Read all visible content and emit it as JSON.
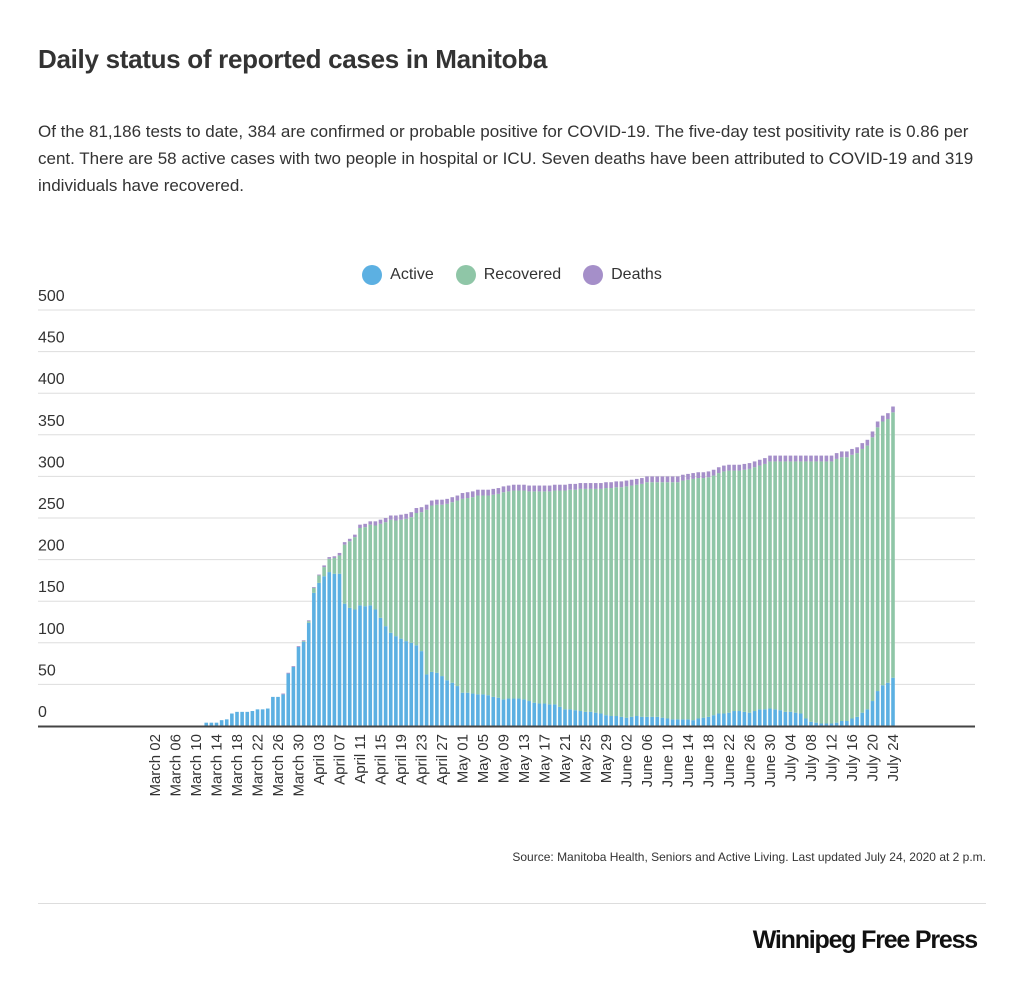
{
  "title": "Daily status of reported cases in Manitoba",
  "description": "Of the 81,186 tests to date, 384 are confirmed or probable positive for COVID-19. The five-day test positivity rate is 0.86 per cent. There are 58 active cases with two people in hospital or ICU. Seven deaths have been attributed to COVID-19 and 319 individuals have recovered.",
  "source": "Source: Manitoba Health, Seniors and Active Living.  Last updated July 24, 2020 at 2 p.m.",
  "logo": "Winnipeg Free Press",
  "colors": {
    "active": "#5cb0e2",
    "recovered": "#8fc6a7",
    "deaths": "#a58fc9"
  },
  "chart_data": {
    "type": "bar",
    "stacked": true,
    "title": "Daily status of reported cases in Manitoba",
    "legend_position": "top",
    "grid": true,
    "ylim": [
      0,
      500
    ],
    "yticks": [
      0,
      50,
      100,
      150,
      200,
      250,
      300,
      350,
      400,
      450,
      500
    ],
    "xtick_labels": [
      "March 02",
      "March 06",
      "March 10",
      "March 14",
      "March 18",
      "March 22",
      "March 26",
      "March 30",
      "April 03",
      "April 07",
      "April 11",
      "April 15",
      "April 19",
      "April 23",
      "April 27",
      "May 01",
      "May 05",
      "May 09",
      "May 13",
      "May 17",
      "May 21",
      "May 25",
      "May 29",
      "June 02",
      "June 06",
      "June 10",
      "June 14",
      "June 18",
      "June 22",
      "June 26",
      "June 30",
      "July 04",
      "July 08",
      "July 12",
      "July 16",
      "July 20",
      "July 24"
    ],
    "xtick_dates": [
      "2020-03-02",
      "2020-03-06",
      "2020-03-10",
      "2020-03-14",
      "2020-03-18",
      "2020-03-22",
      "2020-03-26",
      "2020-03-30",
      "2020-04-03",
      "2020-04-07",
      "2020-04-11",
      "2020-04-15",
      "2020-04-19",
      "2020-04-23",
      "2020-04-27",
      "2020-05-01",
      "2020-05-05",
      "2020-05-09",
      "2020-05-13",
      "2020-05-17",
      "2020-05-21",
      "2020-05-25",
      "2020-05-29",
      "2020-06-02",
      "2020-06-06",
      "2020-06-10",
      "2020-06-14",
      "2020-06-18",
      "2020-06-22",
      "2020-06-26",
      "2020-06-30",
      "2020-07-04",
      "2020-07-08",
      "2020-07-12",
      "2020-07-16",
      "2020-07-20",
      "2020-07-24"
    ],
    "x": [
      "2020-03-12",
      "2020-03-13",
      "2020-03-14",
      "2020-03-15",
      "2020-03-16",
      "2020-03-17",
      "2020-03-18",
      "2020-03-19",
      "2020-03-20",
      "2020-03-21",
      "2020-03-22",
      "2020-03-23",
      "2020-03-24",
      "2020-03-25",
      "2020-03-26",
      "2020-03-27",
      "2020-03-28",
      "2020-03-29",
      "2020-03-30",
      "2020-03-31",
      "2020-04-01",
      "2020-04-02",
      "2020-04-03",
      "2020-04-04",
      "2020-04-05",
      "2020-04-06",
      "2020-04-07",
      "2020-04-08",
      "2020-04-09",
      "2020-04-10",
      "2020-04-11",
      "2020-04-12",
      "2020-04-13",
      "2020-04-14",
      "2020-04-15",
      "2020-04-16",
      "2020-04-17",
      "2020-04-18",
      "2020-04-19",
      "2020-04-20",
      "2020-04-21",
      "2020-04-22",
      "2020-04-23",
      "2020-04-24",
      "2020-04-25",
      "2020-04-26",
      "2020-04-27",
      "2020-04-28",
      "2020-04-29",
      "2020-04-30",
      "2020-05-01",
      "2020-05-02",
      "2020-05-03",
      "2020-05-04",
      "2020-05-05",
      "2020-05-06",
      "2020-05-07",
      "2020-05-08",
      "2020-05-09",
      "2020-05-10",
      "2020-05-11",
      "2020-05-12",
      "2020-05-13",
      "2020-05-14",
      "2020-05-15",
      "2020-05-16",
      "2020-05-17",
      "2020-05-18",
      "2020-05-19",
      "2020-05-20",
      "2020-05-21",
      "2020-05-22",
      "2020-05-23",
      "2020-05-24",
      "2020-05-25",
      "2020-05-26",
      "2020-05-27",
      "2020-05-28",
      "2020-05-29",
      "2020-05-30",
      "2020-05-31",
      "2020-06-01",
      "2020-06-02",
      "2020-06-03",
      "2020-06-04",
      "2020-06-05",
      "2020-06-06",
      "2020-06-07",
      "2020-06-08",
      "2020-06-09",
      "2020-06-10",
      "2020-06-11",
      "2020-06-12",
      "2020-06-13",
      "2020-06-14",
      "2020-06-15",
      "2020-06-16",
      "2020-06-17",
      "2020-06-18",
      "2020-06-19",
      "2020-06-20",
      "2020-06-21",
      "2020-06-22",
      "2020-06-23",
      "2020-06-24",
      "2020-06-25",
      "2020-06-26",
      "2020-06-27",
      "2020-06-28",
      "2020-06-29",
      "2020-06-30",
      "2020-07-01",
      "2020-07-02",
      "2020-07-03",
      "2020-07-04",
      "2020-07-05",
      "2020-07-06",
      "2020-07-07",
      "2020-07-08",
      "2020-07-09",
      "2020-07-10",
      "2020-07-11",
      "2020-07-12",
      "2020-07-13",
      "2020-07-14",
      "2020-07-15",
      "2020-07-16",
      "2020-07-17",
      "2020-07-18",
      "2020-07-19",
      "2020-07-20",
      "2020-07-21",
      "2020-07-22",
      "2020-07-23",
      "2020-07-24"
    ],
    "series": [
      {
        "name": "Active",
        "values": [
          4,
          4,
          4,
          7,
          8,
          15,
          17,
          17,
          17,
          18,
          20,
          20,
          21,
          35,
          35,
          38,
          63,
          71,
          95,
          101,
          124,
          160,
          172,
          180,
          185,
          183,
          183,
          147,
          142,
          140,
          145,
          144,
          145,
          140,
          130,
          120,
          112,
          108,
          105,
          102,
          100,
          97,
          90,
          62,
          65,
          64,
          60,
          55,
          52,
          48,
          40,
          40,
          39,
          38,
          38,
          37,
          35,
          34,
          32,
          33,
          33,
          33,
          32,
          30,
          28,
          27,
          27,
          26,
          26,
          23,
          20,
          20,
          19,
          18,
          17,
          17,
          16,
          15,
          13,
          12,
          12,
          11,
          10,
          11,
          12,
          11,
          11,
          11,
          11,
          10,
          9,
          8,
          8,
          8,
          8,
          7,
          9,
          10,
          11,
          13,
          15,
          15,
          16,
          18,
          18,
          17,
          16,
          18,
          20,
          20,
          21,
          20,
          19,
          17,
          17,
          16,
          15,
          9,
          5,
          4,
          3,
          3,
          3,
          4,
          6,
          6,
          9,
          11,
          16,
          20,
          30,
          42,
          49,
          52,
          58
        ]
      },
      {
        "name": "Recovered",
        "values": [
          0,
          0,
          0,
          0,
          0,
          0,
          0,
          0,
          0,
          0,
          0,
          0,
          0,
          0,
          0,
          0,
          0,
          0,
          0,
          1,
          2,
          6,
          9,
          11,
          16,
          19,
          22,
          71,
          80,
          87,
          93,
          95,
          97,
          101,
          113,
          125,
          136,
          139,
          143,
          147,
          151,
          159,
          167,
          198,
          200,
          202,
          206,
          212,
          217,
          223,
          233,
          234,
          236,
          239,
          239,
          240,
          243,
          245,
          249,
          249,
          250,
          250,
          251,
          252,
          254,
          255,
          255,
          256,
          257,
          260,
          263,
          264,
          265,
          267,
          268,
          268,
          269,
          270,
          273,
          274,
          275,
          276,
          278,
          278,
          278,
          280,
          282,
          282,
          282,
          283,
          284,
          285,
          285,
          287,
          288,
          290,
          289,
          288,
          288,
          288,
          289,
          291,
          291,
          289,
          289,
          291,
          293,
          293,
          293,
          295,
          297,
          298,
          299,
          301,
          301,
          302,
          303,
          309,
          313,
          314,
          315,
          315,
          315,
          317,
          317,
          317,
          317,
          317,
          317,
          317,
          317,
          317,
          317,
          317,
          319
        ]
      },
      {
        "name": "Deaths",
        "values": [
          0,
          0,
          0,
          0,
          0,
          0,
          0,
          0,
          0,
          0,
          0,
          0,
          0,
          0,
          0,
          1,
          1,
          1,
          1,
          1,
          1,
          1,
          1,
          2,
          2,
          2,
          3,
          3,
          3,
          3,
          4,
          4,
          4,
          5,
          5,
          5,
          5,
          6,
          6,
          6,
          6,
          6,
          6,
          6,
          6,
          6,
          6,
          6,
          6,
          6,
          7,
          7,
          7,
          7,
          7,
          7,
          7,
          7,
          7,
          7,
          7,
          7,
          7,
          7,
          7,
          7,
          7,
          7,
          7,
          7,
          7,
          7,
          7,
          7,
          7,
          7,
          7,
          7,
          7,
          7,
          7,
          7,
          7,
          7,
          7,
          7,
          7,
          7,
          7,
          7,
          7,
          7,
          7,
          7,
          7,
          7,
          7,
          7,
          7,
          7,
          7,
          7,
          7,
          7,
          7,
          7,
          7,
          7,
          7,
          7,
          7,
          7,
          7,
          7,
          7,
          7,
          7,
          7,
          7,
          7,
          7,
          7,
          7,
          7,
          7,
          7,
          7,
          7,
          7,
          7,
          7,
          7,
          7,
          7,
          7
        ]
      }
    ]
  }
}
